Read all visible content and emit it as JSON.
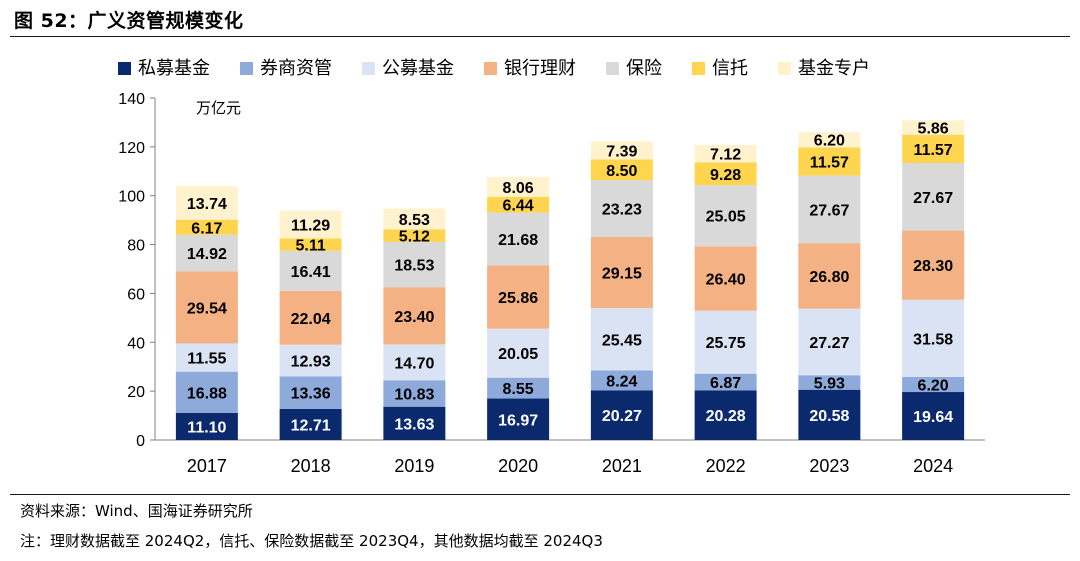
{
  "figure": {
    "title": "图 52：广义资管规模变化",
    "source": "资料来源：Wind、国海证券研究所",
    "footnote": "注：理财数据截至 2024Q2，信托、保险数据截至 2023Q4，其他数据均截至 2024Q3"
  },
  "chart_data": {
    "type": "bar",
    "stacked": true,
    "unit_label": "万亿元",
    "categories": [
      "2017",
      "2018",
      "2019",
      "2020",
      "2021",
      "2022",
      "2023",
      "2024"
    ],
    "ylim": [
      0,
      140
    ],
    "yticks": [
      0,
      20,
      40,
      60,
      80,
      100,
      120,
      140
    ],
    "grid": false,
    "legend_position": "top",
    "series": [
      {
        "name": "私募基金",
        "color": "#0b2a6e",
        "text_color": "#ffffff",
        "values": [
          11.1,
          12.71,
          13.63,
          16.97,
          20.27,
          20.28,
          20.58,
          19.64
        ]
      },
      {
        "name": "券商资管",
        "color": "#8eaadb",
        "text_color": "#000000",
        "values": [
          16.88,
          13.36,
          10.83,
          8.55,
          8.24,
          6.87,
          5.93,
          6.2
        ]
      },
      {
        "name": "公募基金",
        "color": "#dae3f3",
        "text_color": "#000000",
        "values": [
          11.55,
          12.93,
          14.7,
          20.05,
          25.45,
          25.75,
          27.27,
          31.58
        ]
      },
      {
        "name": "银行理财",
        "color": "#f4b183",
        "text_color": "#000000",
        "values": [
          29.54,
          22.04,
          23.4,
          25.86,
          29.15,
          26.4,
          26.8,
          28.3
        ]
      },
      {
        "name": "保险",
        "color": "#d9d9d9",
        "text_color": "#000000",
        "values": [
          14.92,
          16.41,
          18.53,
          21.68,
          23.23,
          25.05,
          27.67,
          27.67
        ]
      },
      {
        "name": "信托",
        "color": "#ffd54f",
        "text_color": "#000000",
        "values": [
          6.17,
          5.11,
          5.12,
          6.44,
          8.5,
          9.28,
          11.57,
          11.57
        ]
      },
      {
        "name": "基金专户",
        "color": "#fff2cc",
        "text_color": "#000000",
        "values": [
          13.74,
          11.29,
          8.53,
          8.06,
          7.39,
          7.12,
          6.2,
          5.86
        ]
      }
    ]
  }
}
